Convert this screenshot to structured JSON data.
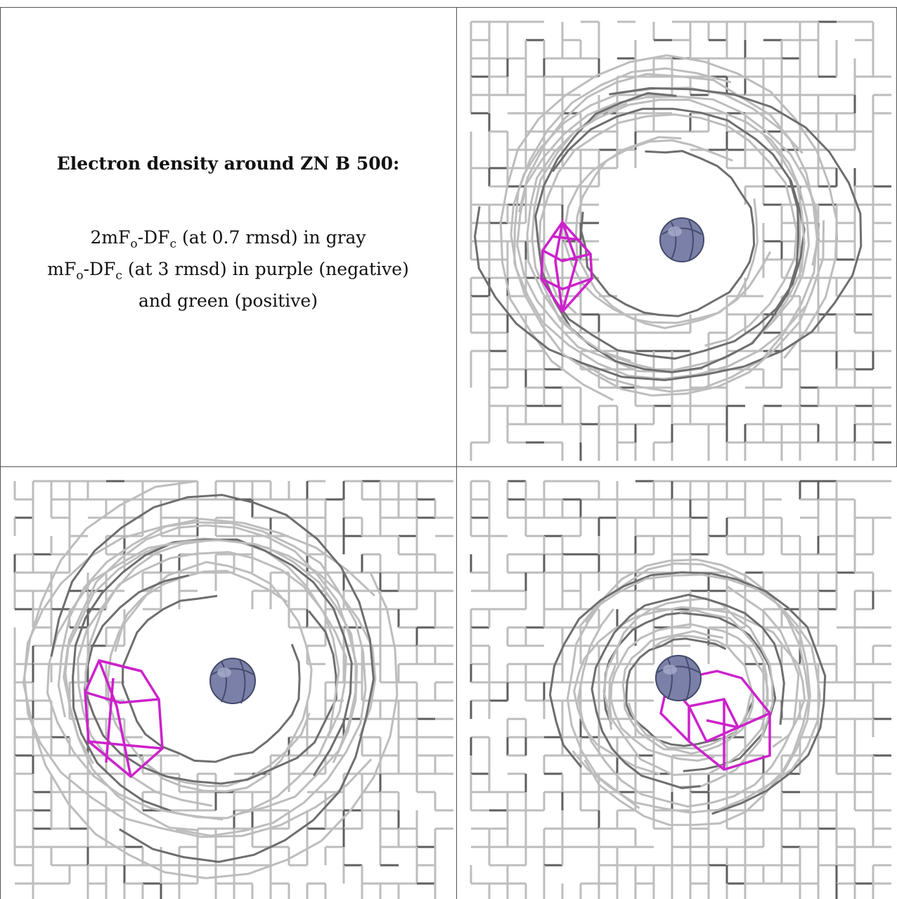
{
  "caption": {
    "title": "Electron density around ZN B 500:",
    "line1": {
      "a": "2mF",
      "s1": "o",
      "b": "-DF",
      "s2": "c",
      "c": " (at 0.7 rmsd) in gray"
    },
    "line2": {
      "a": "mF",
      "s1": "o",
      "b": "-DF",
      "s2": "c",
      "c": " (at 3 rmsd) in purple (negative)"
    },
    "line3": "and green (positive)"
  },
  "colors": {
    "mesh_gray": "#bdbdbd",
    "mesh_dark": "#5a5a5a",
    "negative_purple": "#cc22cc",
    "zinc_sphere": "#7b80a8",
    "border": "#555555"
  },
  "panels": [
    "view-1",
    "view-2",
    "view-3"
  ]
}
